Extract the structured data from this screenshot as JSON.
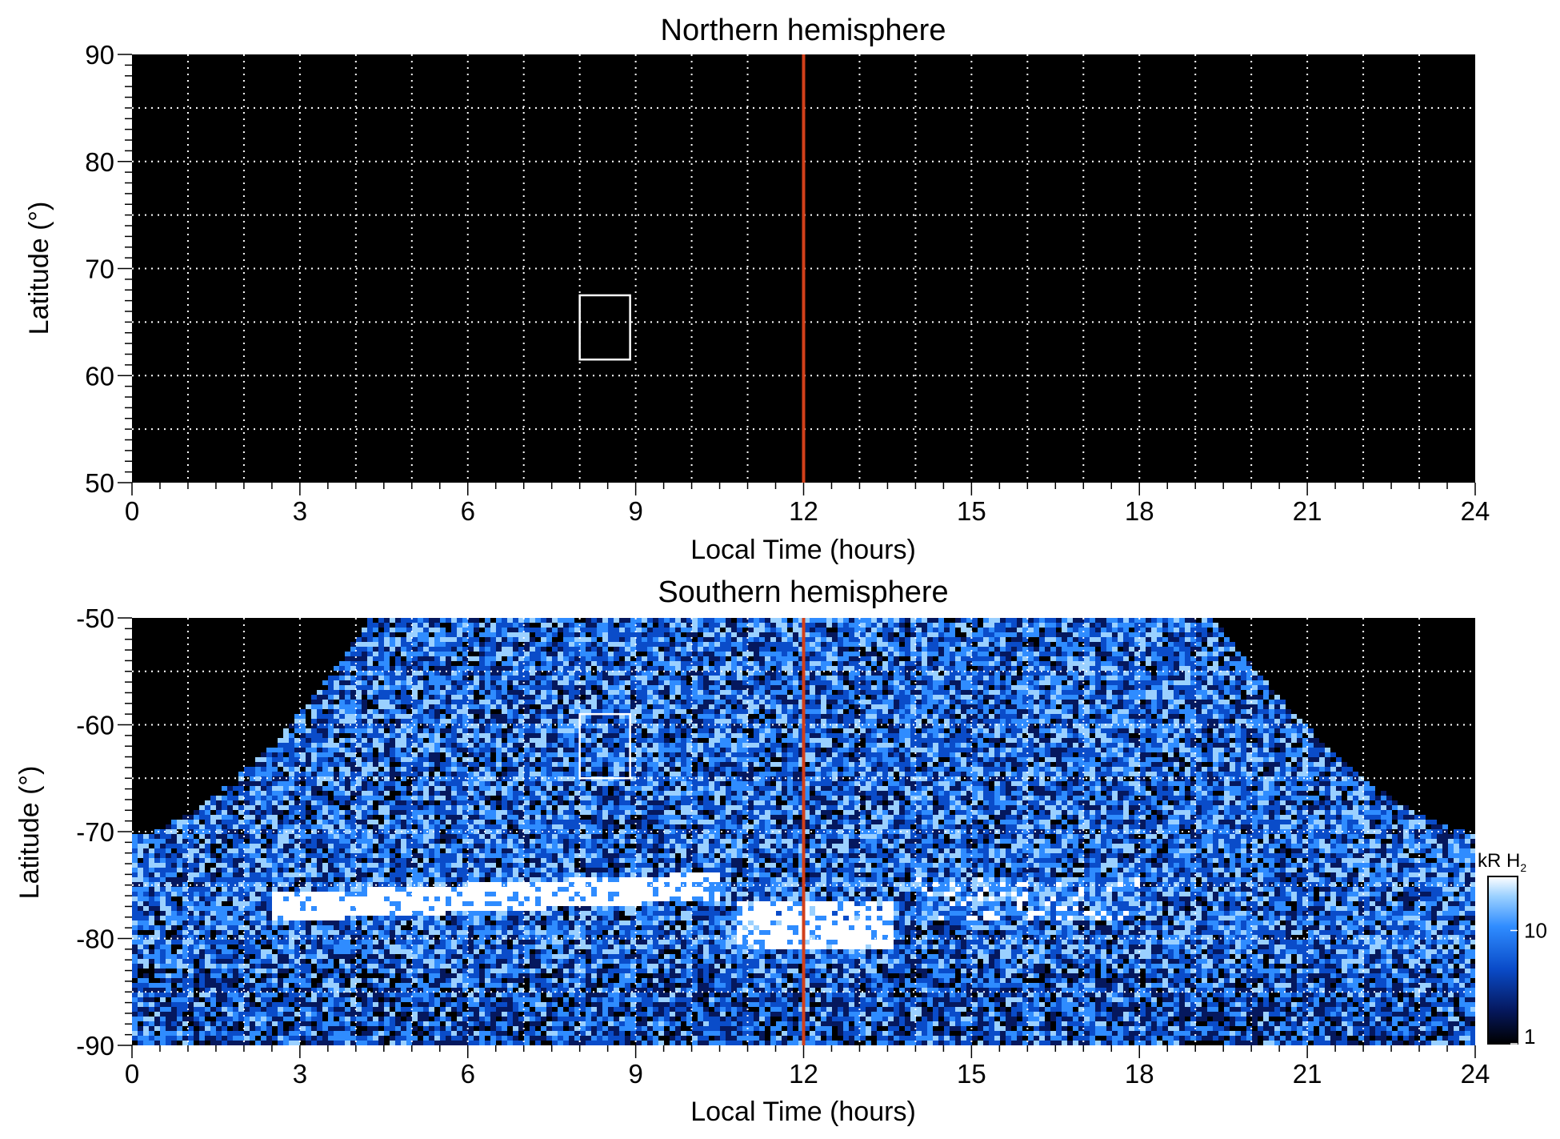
{
  "chart_data": [
    {
      "type": "heatmap",
      "title": "Northern hemisphere",
      "xlabel": "Local Time (hours)",
      "ylabel": "Latitude (°)",
      "xlim": [
        0,
        24
      ],
      "ylim": [
        50,
        90
      ],
      "x_ticks": [
        "0",
        "3",
        "6",
        "9",
        "12",
        "15",
        "18",
        "21",
        "24"
      ],
      "y_ticks": [
        "50",
        "60",
        "70",
        "80",
        "90"
      ],
      "grid": true,
      "background_color": "#000000",
      "emission": "none",
      "marker_line": {
        "x": 12,
        "color": "#d2401a"
      },
      "highlight_box": {
        "x": [
          8.0,
          8.9
        ],
        "y": [
          61.5,
          67.5
        ],
        "color": "#ffffff"
      }
    },
    {
      "type": "heatmap",
      "title": "Southern hemisphere",
      "xlabel": "Local Time (hours)",
      "ylabel": "Latitude (°)",
      "xlim": [
        0,
        24
      ],
      "ylim": [
        -90,
        -50
      ],
      "x_ticks": [
        "0",
        "3",
        "6",
        "9",
        "12",
        "15",
        "18",
        "21",
        "24"
      ],
      "y_ticks": [
        "-90",
        "-80",
        "-70",
        "-60",
        "-50"
      ],
      "grid": true,
      "background_color": "#000000",
      "emission": "noisy, coverage boundary rising from -70 at 0 h to -50 between ~4 h and ~19.5 h, back to -70 at 24 h",
      "bright_features": [
        {
          "label": "dawn arc",
          "x": [
            2.5,
            10.5
          ],
          "y_center": -76,
          "intensity": "high"
        },
        {
          "label": "noon spot",
          "x": [
            10.8,
            13.6
          ],
          "y_center": -78.5,
          "intensity": "high"
        }
      ],
      "marker_line": {
        "x": 12,
        "color": "#d2401a"
      },
      "highlight_box": {
        "x": [
          8.0,
          8.9
        ],
        "y": [
          -65,
          -59
        ],
        "color": "#ffffff"
      },
      "colorbar": {
        "label_main": "kR H",
        "label_sub": "2",
        "scale": "log",
        "range": [
          1,
          30
        ],
        "ticks": [
          "1",
          "10"
        ],
        "colors": [
          "#000000",
          "#05185e",
          "#0a4cc9",
          "#2f8cff",
          "#9ad0ff",
          "#ffffff"
        ]
      }
    }
  ]
}
